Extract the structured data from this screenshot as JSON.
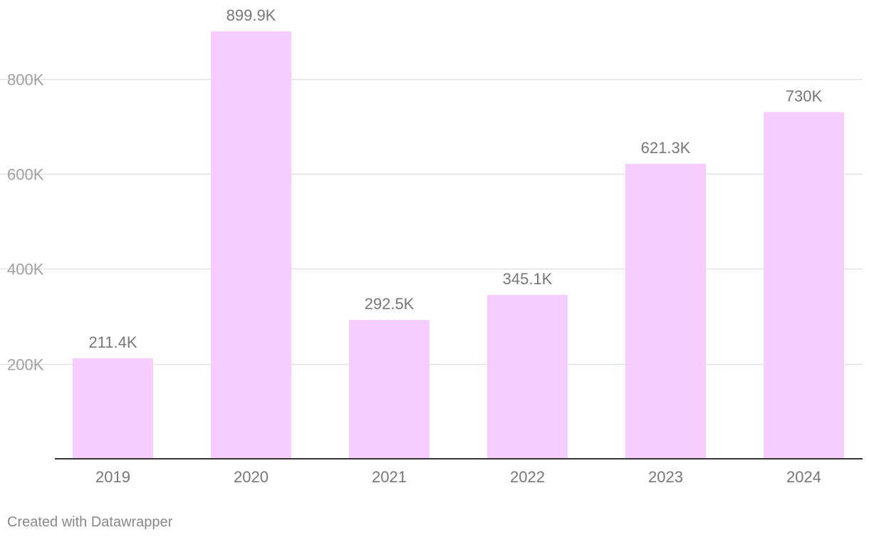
{
  "chart_data": {
    "type": "bar",
    "categories": [
      "2019",
      "2020",
      "2021",
      "2022",
      "2023",
      "2024"
    ],
    "values": [
      211400,
      899900,
      292500,
      345100,
      621300,
      730000
    ],
    "value_labels": [
      "211.4K",
      "899.9K",
      "292.5K",
      "345.1K",
      "621.3K",
      "730K"
    ],
    "y_ticks": [
      200000,
      400000,
      600000,
      800000
    ],
    "y_tick_labels": [
      "200K",
      "400K",
      "600K",
      "800K"
    ],
    "ylim": [
      0,
      900000
    ],
    "grid": true,
    "bar_color": "#f7ccff",
    "gridline_color": "#e2e2e2",
    "axis_color": "#333333",
    "text_color": "#777777",
    "tick_text_color": "#a0a0a0"
  },
  "footer": {
    "credit": "Created with Datawrapper"
  }
}
